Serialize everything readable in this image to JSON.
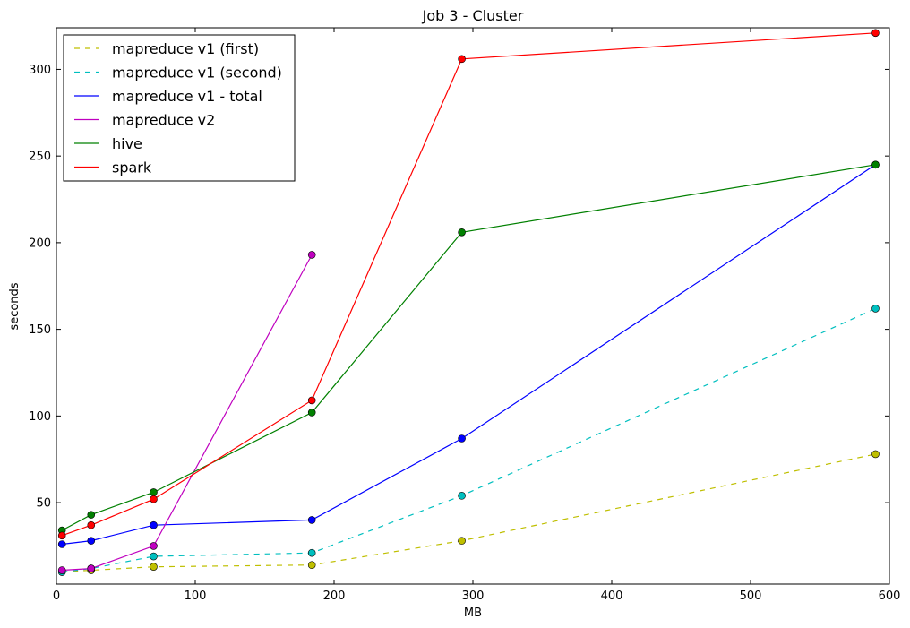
{
  "chart_data": {
    "type": "line",
    "title": "Job 3 - Cluster",
    "xlabel": "MB",
    "ylabel": "seconds",
    "xlim": [
      0,
      600
    ],
    "ylim": [
      3,
      324
    ],
    "xticks": [
      0,
      100,
      200,
      300,
      400,
      500,
      600
    ],
    "yticks": [
      50,
      100,
      150,
      200,
      250,
      300
    ],
    "grid": false,
    "legend_position": "upper-left",
    "series": [
      {
        "name": "mapreduce v1 (first)",
        "color": "#bfbf00",
        "style": "dashed",
        "x": [
          4,
          25,
          70,
          184,
          292,
          590
        ],
        "y": [
          10,
          11,
          13,
          14,
          28,
          78
        ]
      },
      {
        "name": "mapreduce v1 (second)",
        "color": "#00bfbf",
        "style": "dashed",
        "x": [
          4,
          25,
          70,
          184,
          292,
          590
        ],
        "y": [
          10,
          12,
          19,
          21,
          54,
          162
        ]
      },
      {
        "name": "mapreduce v1 - total",
        "color": "#0000ff",
        "style": "solid",
        "x": [
          4,
          25,
          70,
          184,
          292,
          590
        ],
        "y": [
          26,
          28,
          37,
          40,
          87,
          245
        ]
      },
      {
        "name": "mapreduce v2",
        "color": "#bf00bf",
        "style": "solid",
        "x": [
          4,
          25,
          70,
          184
        ],
        "y": [
          11,
          12,
          25,
          193
        ]
      },
      {
        "name": "hive",
        "color": "#008000",
        "style": "solid",
        "x": [
          4,
          25,
          70,
          184,
          292,
          590
        ],
        "y": [
          34,
          43,
          56,
          102,
          206,
          245
        ]
      },
      {
        "name": "spark",
        "color": "#ff0000",
        "style": "solid",
        "x": [
          4,
          25,
          70,
          184,
          292,
          590
        ],
        "y": [
          31,
          37,
          52,
          109,
          306,
          321
        ]
      }
    ]
  }
}
